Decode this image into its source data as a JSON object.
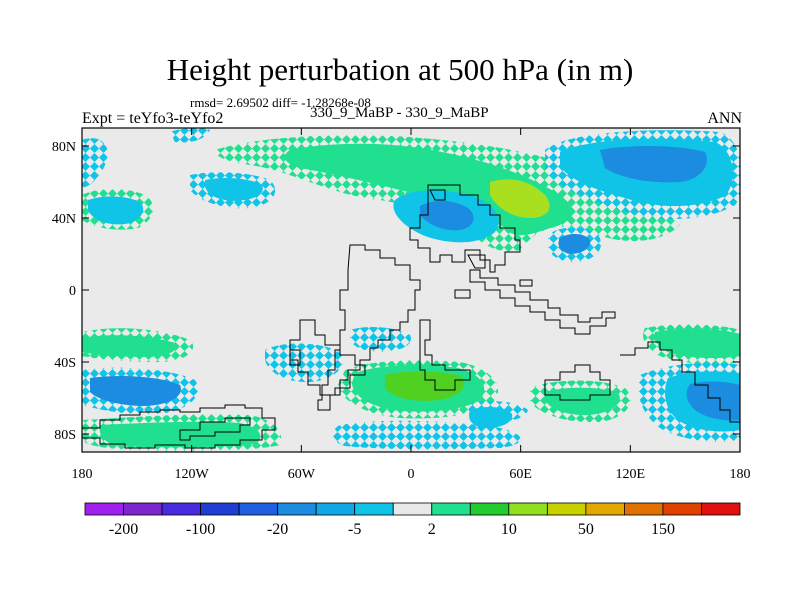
{
  "header": {
    "title": "Height perturbation at 500 hPa (in m)",
    "stats": "rmsd= 2.69502 diff= -1.28268e-08",
    "expt": "Expt = teYfo3-teYfo2",
    "run": "330_9_MaBP - 330_9_MaBP",
    "season": "ANN"
  },
  "map": {
    "projection": "cylindrical-equidistant",
    "lon_range": [
      -180,
      180
    ],
    "lat_range": [
      -90,
      90
    ],
    "background_color": "#eaeaea",
    "coastline_color": "#000000",
    "lat_ticks": [
      {
        "value": 80,
        "label": "80N"
      },
      {
        "value": 40,
        "label": "40N"
      },
      {
        "value": 0,
        "label": "0"
      },
      {
        "value": -40,
        "label": "40S"
      },
      {
        "value": -80,
        "label": "80S"
      }
    ],
    "lon_ticks": [
      {
        "value": -180,
        "label": "180"
      },
      {
        "value": -120,
        "label": "120W"
      },
      {
        "value": -60,
        "label": "60W"
      },
      {
        "value": 0,
        "label": "0"
      },
      {
        "value": 60,
        "label": "60E"
      },
      {
        "value": 120,
        "label": "120E"
      },
      {
        "value": 180,
        "label": "180"
      }
    ]
  },
  "colorbar": {
    "colors": [
      "#a020f0",
      "#7d26cd",
      "#4a2ce0",
      "#1f3fd4",
      "#2060e0",
      "#1c8ce0",
      "#10a8e6",
      "#10c4e8",
      "#e8e8e8",
      "#20e090",
      "#20cc30",
      "#90e020",
      "#c8d000",
      "#e0a800",
      "#e07000",
      "#e04000",
      "#e01010"
    ],
    "labels": [
      {
        "boundary": 1,
        "text": "-200"
      },
      {
        "boundary": 3,
        "text": "-100"
      },
      {
        "boundary": 5,
        "text": "-20"
      },
      {
        "boundary": 7,
        "text": "-5"
      },
      {
        "boundary": 9,
        "text": "2"
      },
      {
        "boundary": 11,
        "text": "10"
      },
      {
        "boundary": 13,
        "text": "50"
      },
      {
        "boundary": 15,
        "text": "150"
      }
    ]
  }
}
